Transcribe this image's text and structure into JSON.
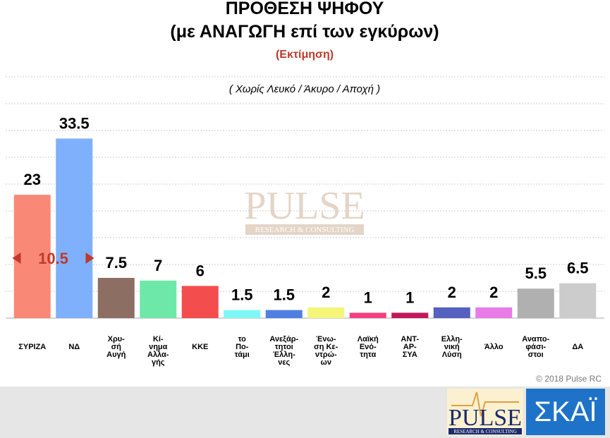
{
  "chart_data": {
    "type": "bar",
    "title": "ΠΡΟΘΕΣΗ ΨΗΦΟΥ",
    "subtitle": "(με ΑΝΑΓΩΓΗ επί των εγκύρων)",
    "estimate_note": "(Εκτίμηση)",
    "note": "( Χωρίς Λευκό / Άκυρο / Αποχή )",
    "annotation": "10.5",
    "copyright": "© 2018 Pulse RC",
    "categories": [
      "ΣΥΡΙΖΑ",
      "ΝΔ",
      "Χρυ-\nσή\nΑυγή",
      "Κί-\nνημα\nΑλλα-\nγής",
      "ΚΚΕ",
      "το\nΠο-\nτάμι",
      "Ανεξάρ-\nτητοι\nΈλλη-\nνες",
      "Ένω-\nση Κε-\nντρώ-\nων",
      "Λαϊκή\nΕνό-\nτητα",
      "ΑΝΤ-\nΑΡ-\nΣΥΑ",
      "Ελλη-\nνική\nΛύση",
      "Άλλο",
      "Αναπο-\nφάσι-\nστοι",
      "ΔΑ"
    ],
    "values": [
      23,
      33.5,
      7.5,
      7,
      6,
      1.5,
      1.5,
      2,
      1,
      1,
      2,
      2,
      5.5,
      6.5
    ],
    "colors": [
      "#f98877",
      "#7fb0fb",
      "#8d6e63",
      "#6ee8a8",
      "#f44d4d",
      "#7ff7f7",
      "#4f7fe0",
      "#f5f57a",
      "#f04080",
      "#c0185a",
      "#5560c0",
      "#e87be8",
      "#b0b0b0",
      "#cccccc"
    ],
    "ylim": [
      0,
      45
    ],
    "yticks": [
      0,
      5,
      10,
      15,
      20,
      25,
      30,
      35,
      40,
      45
    ],
    "grid": true
  },
  "watermark": {
    "brand": "PULSE",
    "tagline": "RESEARCH & CONSULTING"
  },
  "logos": {
    "pulse": "PULSE",
    "pulse_tagline": "RESEARCH & CONSULTING",
    "skai": "ΣΚΑΪ"
  }
}
